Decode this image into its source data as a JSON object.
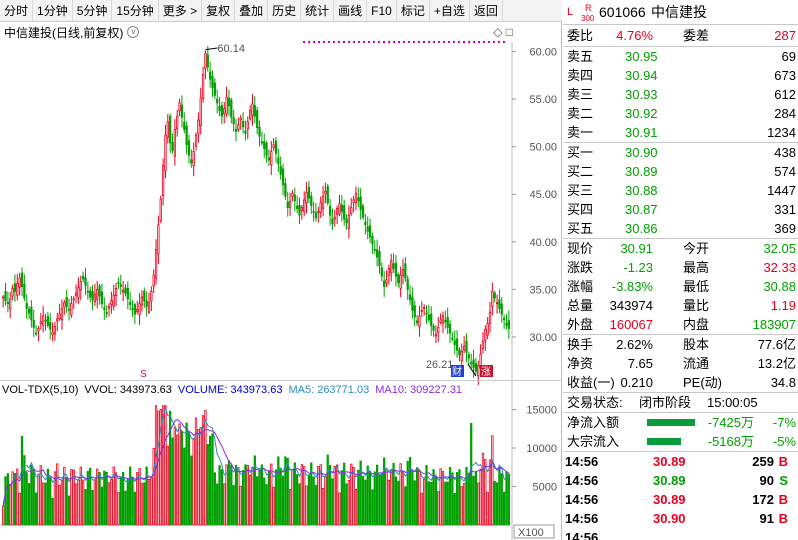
{
  "toolbar": {
    "tabs": [
      "分时",
      "1分钟",
      "5分钟",
      "15分钟",
      "更多 >",
      "复权",
      "叠加",
      "历史",
      "统计",
      "画线",
      "F10",
      "标记",
      "+自选",
      "返回"
    ]
  },
  "chart": {
    "title": "中信建投(日线,前复权)",
    "high_label": "60.14",
    "low_label": "26.21",
    "y_ticks": [
      "60.00",
      "55.00",
      "50.00",
      "45.00",
      "40.00",
      "35.00",
      "30.00"
    ],
    "marker_cai": "财",
    "marker_zhang": "涨",
    "marker_s": "S"
  },
  "volume": {
    "label": "VOL-TDX(5,10)",
    "vvol": "VVOL: 343973.63",
    "vol": "VOLUME: 343973.63",
    "ma5": "MA5: 263771.03",
    "ma10": "MA10: 309227.31",
    "y_ticks": [
      "15000",
      "10000",
      "5000"
    ],
    "unit": "X100",
    "colors": {
      "vol": "#0000ff",
      "ma5": "#2a8fbf",
      "ma10": "#8a2be2"
    }
  },
  "quote": {
    "flag_l": "L",
    "flag_r": "R",
    "flag_300": "300",
    "code": "601066",
    "name": "中信建投",
    "wb_label": "委比",
    "wb_value": "4.76%",
    "wc_label": "委差",
    "wc_value": "287",
    "asks": [
      {
        "label": "卖五",
        "price": "30.95",
        "vol": "69"
      },
      {
        "label": "卖四",
        "price": "30.94",
        "vol": "673"
      },
      {
        "label": "卖三",
        "price": "30.93",
        "vol": "612"
      },
      {
        "label": "卖二",
        "price": "30.92",
        "vol": "284"
      },
      {
        "label": "卖一",
        "price": "30.91",
        "vol": "1234"
      }
    ],
    "bids": [
      {
        "label": "买一",
        "price": "30.90",
        "vol": "438"
      },
      {
        "label": "买二",
        "price": "30.89",
        "vol": "574"
      },
      {
        "label": "买三",
        "price": "30.88",
        "vol": "1447"
      },
      {
        "label": "买四",
        "price": "30.87",
        "vol": "331"
      },
      {
        "label": "买五",
        "price": "30.86",
        "vol": "369"
      }
    ],
    "stats": [
      {
        "l1": "现价",
        "v1": "30.91",
        "c1": "green",
        "l2": "今开",
        "v2": "32.05",
        "c2": "green"
      },
      {
        "l1": "涨跌",
        "v1": "-1.23",
        "c1": "green",
        "l2": "最高",
        "v2": "32.33",
        "c2": "red"
      },
      {
        "l1": "涨幅",
        "v1": "-3.83%",
        "c1": "green",
        "l2": "最低",
        "v2": "30.88",
        "c2": "green"
      },
      {
        "l1": "总量",
        "v1": "343974",
        "c1": "black",
        "l2": "量比",
        "v2": "1.19",
        "c2": "red"
      },
      {
        "l1": "外盘",
        "v1": "160067",
        "c1": "red",
        "l2": "内盘",
        "v2": "183907",
        "c2": "green"
      }
    ],
    "stats2": [
      {
        "l1": "换手",
        "v1": "2.62%",
        "l2": "股本",
        "v2": "77.6亿"
      },
      {
        "l1": "净资",
        "v1": "7.65",
        "l2": "流通",
        "v2": "13.2亿"
      },
      {
        "l1": "收益(一)",
        "v1": "0.210",
        "l2": "PE(动)",
        "v2": "34.8"
      }
    ],
    "trade_status_label": "交易状态:",
    "trade_status": "闭市阶段",
    "trade_time": "15:00:05",
    "flows": [
      {
        "label": "净流入额",
        "value": "-7425万",
        "pct": "-7%",
        "bar": 0.7
      },
      {
        "label": "大宗流入",
        "value": "-5168万",
        "pct": "-5%",
        "bar": 0.5
      }
    ],
    "ticks": [
      {
        "time": "14:56",
        "price": "30.89",
        "vol": "259",
        "side": "B",
        "color": "red"
      },
      {
        "time": "14:56",
        "price": "30.89",
        "vol": "90",
        "side": "S",
        "color": "green"
      },
      {
        "time": "14:56",
        "price": "30.89",
        "vol": "172",
        "side": "B",
        "color": "red"
      },
      {
        "time": "14:56",
        "price": "30.90",
        "vol": "91",
        "side": "B",
        "color": "red"
      },
      {
        "time": "14:56",
        "price": "",
        "vol": "",
        "side": "",
        "color": "red"
      }
    ]
  },
  "chart_data": {
    "type": "candlestick",
    "y_range": [
      26,
      61
    ],
    "closes": [
      34.2,
      33.8,
      33.5,
      34.0,
      35.1,
      34.8,
      35.6,
      36.2,
      35.3,
      34.1,
      33.0,
      32.5,
      31.8,
      31.0,
      30.4,
      30.9,
      31.6,
      32.2,
      31.7,
      31.2,
      30.8,
      30.5,
      31.1,
      31.9,
      32.4,
      33.0,
      33.6,
      33.2,
      32.8,
      33.5,
      34.0,
      34.6,
      35.2,
      35.8,
      36.1,
      35.4,
      34.8,
      34.2,
      33.9,
      34.5,
      35.0,
      34.3,
      33.5,
      32.9,
      32.5,
      33.2,
      33.8,
      34.4,
      35.1,
      35.6,
      35.3,
      34.9,
      34.6,
      34.0,
      33.4,
      32.9,
      32.4,
      32.9,
      33.5,
      34.2,
      33.8,
      33.2,
      33.6,
      34.8,
      36.5,
      39.2,
      41.8,
      44.5,
      48.0,
      51.2,
      52.6,
      50.4,
      49.6,
      51.8,
      53.2,
      54.6,
      53.1,
      51.8,
      50.2,
      49.1,
      48.3,
      49.5,
      51.2,
      52.8,
      55.1,
      57.6,
      59.8,
      58.4,
      57.1,
      56.2,
      55.4,
      54.6,
      53.8,
      53.2,
      54.0,
      55.2,
      54.3,
      53.1,
      52.4,
      51.6,
      52.3,
      53.0,
      52.1,
      51.4,
      52.6,
      53.8,
      54.5,
      53.2,
      52.0,
      51.1,
      50.4,
      49.8,
      49.1,
      48.6,
      49.5,
      50.2,
      49.3,
      48.2,
      47.1,
      46.0,
      44.8,
      43.6,
      44.2,
      45.1,
      44.3,
      43.5,
      42.8,
      43.6,
      44.4,
      45.2,
      44.6,
      43.8,
      43.1,
      42.5,
      43.2,
      44.1,
      44.8,
      45.3,
      44.1,
      42.8,
      41.9,
      42.6,
      43.5,
      44.0,
      43.2,
      42.4,
      42.0,
      42.8,
      43.6,
      44.4,
      45.1,
      44.3,
      43.4,
      42.6,
      41.8,
      41.1,
      40.5,
      39.8,
      39.1,
      38.4,
      37.5,
      36.4,
      35.3,
      36.0,
      37.2,
      38.0,
      37.2,
      36.4,
      35.7,
      36.5,
      37.1,
      36.2,
      35.0,
      33.9,
      32.8,
      32.1,
      31.5,
      32.2,
      32.8,
      33.1,
      32.4,
      31.8,
      31.2,
      30.7,
      30.3,
      31.0,
      31.8,
      32.2,
      31.6,
      31.0,
      30.4,
      29.8,
      29.2,
      28.6,
      28.1,
      28.5,
      29.0,
      28.4,
      27.8,
      27.2,
      26.8,
      26.4,
      27.0,
      28.2,
      29.5,
      30.8,
      31.4,
      32.6,
      34.8,
      34.1,
      33.6,
      33.0,
      32.4,
      31.8,
      31.2,
      30.9
    ]
  }
}
